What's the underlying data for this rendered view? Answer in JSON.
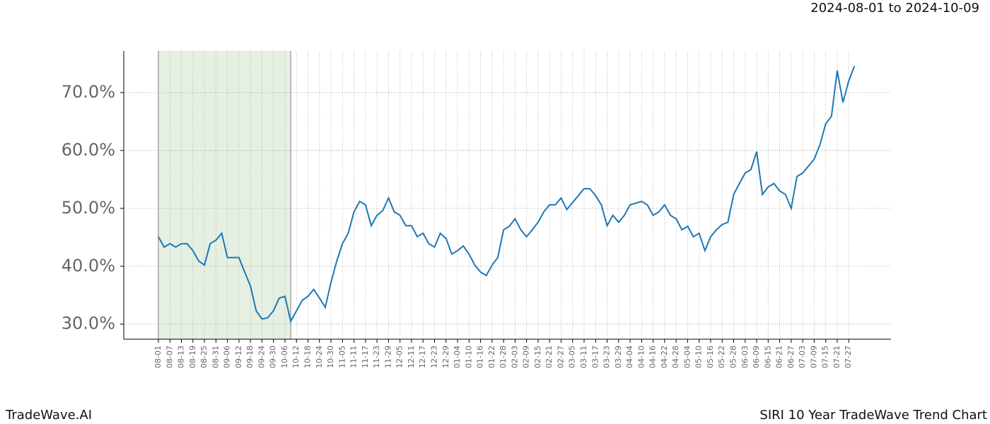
{
  "chart_data": {
    "type": "line",
    "subtitle": "2024-08-01 to 2024-10-09",
    "footer_left": "TradeWave.AI",
    "footer_right": "SIRI 10 Year TradeWave Trend Chart",
    "categories": [
      "08-01",
      null,
      "08-07",
      null,
      "08-13",
      null,
      "08-19",
      null,
      "08-25",
      null,
      "08-31",
      null,
      "09-06",
      null,
      "09-12",
      null,
      "09-18",
      null,
      "09-24",
      null,
      "09-30",
      null,
      "10-06",
      null,
      "10-12",
      null,
      "10-18",
      null,
      "10-24",
      null,
      "10-30",
      null,
      "11-05",
      null,
      "11-11",
      null,
      "11-17",
      null,
      "11-23",
      null,
      "11-29",
      null,
      "12-05",
      null,
      "12-11",
      null,
      "12-17",
      null,
      "12-23",
      null,
      "12-29",
      null,
      "01-04",
      null,
      "01-10",
      null,
      "01-16",
      null,
      "01-22",
      null,
      "01-28",
      null,
      "02-03",
      null,
      "02-09",
      null,
      "02-15",
      null,
      "02-21",
      null,
      "02-27",
      null,
      "03-05",
      null,
      "03-11",
      null,
      "03-17",
      null,
      "03-23",
      null,
      "03-29",
      null,
      "04-04",
      null,
      "04-10",
      null,
      "04-16",
      null,
      "04-22",
      null,
      "04-28",
      null,
      "05-04",
      null,
      "05-10",
      null,
      "05-16",
      null,
      "05-22",
      null,
      "05-28",
      null,
      "06-03",
      null,
      "06-09",
      null,
      "06-15",
      null,
      "06-21",
      null,
      "06-27",
      null,
      "07-03",
      null,
      "07-09",
      null,
      "07-15",
      null,
      "07-21",
      null,
      "07-27",
      null
    ],
    "values": [
      45.1,
      43.3,
      43.9,
      43.3,
      43.9,
      43.9,
      42.7,
      40.9,
      40.2,
      43.9,
      44.5,
      45.7,
      41.5,
      41.5,
      41.5,
      39.0,
      36.6,
      32.3,
      30.9,
      31.1,
      32.3,
      34.5,
      34.8,
      30.5,
      32.3,
      34.1,
      34.8,
      36.0,
      34.5,
      32.9,
      37.2,
      40.9,
      43.9,
      45.7,
      49.4,
      51.2,
      50.6,
      47.0,
      48.8,
      49.6,
      51.8,
      49.4,
      48.8,
      47.0,
      47.0,
      45.1,
      45.7,
      43.9,
      43.3,
      45.7,
      44.8,
      42.1,
      42.7,
      43.5,
      42.1,
      40.2,
      39.0,
      38.4,
      40.2,
      41.5,
      46.3,
      46.9,
      48.2,
      46.3,
      45.1,
      46.3,
      47.6,
      49.4,
      50.6,
      50.6,
      51.8,
      49.8,
      51.0,
      52.2,
      53.4,
      53.4,
      52.2,
      50.6,
      47.0,
      48.8,
      47.6,
      48.8,
      50.6,
      50.9,
      51.2,
      50.6,
      48.8,
      49.4,
      50.6,
      48.8,
      48.2,
      46.3,
      46.9,
      45.1,
      45.7,
      42.7,
      45.1,
      46.3,
      47.2,
      47.6,
      52.4,
      54.3,
      56.1,
      56.7,
      59.8,
      52.4,
      53.7,
      54.3,
      53.0,
      52.4,
      50.0,
      55.5,
      56.1,
      57.3,
      58.5,
      61.0,
      64.6,
      65.9,
      73.8,
      68.3,
      72.0,
      74.6
    ],
    "color": "#1f77b4",
    "highlight": [
      0,
      23
    ],
    "highlight_color": "#e5f0e2",
    "ylim": [
      27.4,
      77.2
    ],
    "yticks": [
      {
        "value": 30,
        "label": "30.0%"
      },
      {
        "value": 40,
        "label": "40.0%"
      },
      {
        "value": 50,
        "label": "50.0%"
      },
      {
        "value": 60,
        "label": "60.0%"
      },
      {
        "value": 70,
        "label": "70.0%"
      }
    ],
    "grid": true
  }
}
